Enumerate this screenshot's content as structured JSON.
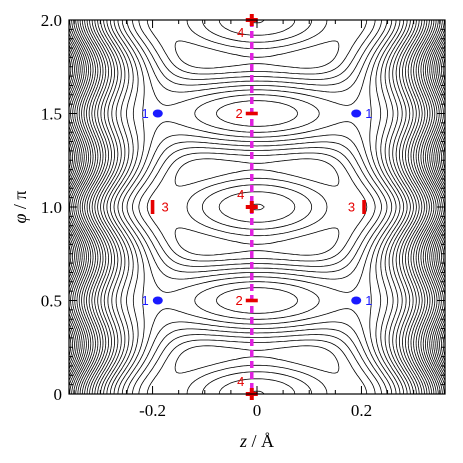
{
  "chart_data": {
    "type": "contour",
    "title": "",
    "xlabel": {
      "var": "z",
      "sep": " / ",
      "unit": "Å"
    },
    "ylabel": {
      "var": "φ",
      "sep": " / ",
      "unit": "π"
    },
    "xlim": [
      -0.36,
      0.36
    ],
    "ylim": [
      0,
      2.0
    ],
    "x_ticks": [
      {
        "value": -0.2,
        "label": "-0.2"
      },
      {
        "value": 0,
        "label": "0"
      },
      {
        "value": 0.2,
        "label": "0.2"
      }
    ],
    "y_ticks": [
      {
        "value": 0,
        "label": "0"
      },
      {
        "value": 0.5,
        "label": "0.5"
      },
      {
        "value": 1.0,
        "label": "1.0"
      },
      {
        "value": 1.5,
        "label": "1.5"
      },
      {
        "value": 2.0,
        "label": "2.0"
      }
    ],
    "contour_color": "#000000",
    "path_color": "#e020e0",
    "path_x": -0.01,
    "marker_colors": {
      "blue": "#1a1aff",
      "red": "#e60000"
    },
    "points": [
      {
        "id": "p1a",
        "label": "1",
        "x": -0.19,
        "y": 0.5,
        "marker": "dot",
        "color": "blue",
        "side": "left"
      },
      {
        "id": "p1b",
        "label": "1",
        "x": 0.19,
        "y": 0.5,
        "marker": "dot",
        "color": "blue",
        "side": "right"
      },
      {
        "id": "p1c",
        "label": "1",
        "x": -0.19,
        "y": 1.5,
        "marker": "dot",
        "color": "blue",
        "side": "left"
      },
      {
        "id": "p1d",
        "label": "1",
        "x": 0.19,
        "y": 1.5,
        "marker": "dot",
        "color": "blue",
        "side": "right"
      },
      {
        "id": "p2a",
        "label": "2",
        "x": -0.01,
        "y": 0.5,
        "marker": "hbar",
        "color": "red",
        "side": "left"
      },
      {
        "id": "p2b",
        "label": "2",
        "x": -0.01,
        "y": 1.5,
        "marker": "hbar",
        "color": "red",
        "side": "left"
      },
      {
        "id": "p3a",
        "label": "3",
        "x": -0.2,
        "y": 1.0,
        "marker": "vbar",
        "color": "red",
        "side": "right"
      },
      {
        "id": "p3b",
        "label": "3",
        "x": 0.205,
        "y": 1.0,
        "marker": "vbar",
        "color": "red",
        "side": "left"
      },
      {
        "id": "p4a",
        "label": "4",
        "x": -0.01,
        "y": 0.0,
        "marker": "plus",
        "color": "red",
        "side": "above"
      },
      {
        "id": "p4b",
        "label": "4",
        "x": -0.01,
        "y": 1.0,
        "marker": "plus",
        "color": "red",
        "side": "above"
      },
      {
        "id": "p4c",
        "label": "4",
        "x": -0.01,
        "y": 2.0,
        "marker": "plus",
        "color": "red",
        "side": "below"
      }
    ]
  }
}
